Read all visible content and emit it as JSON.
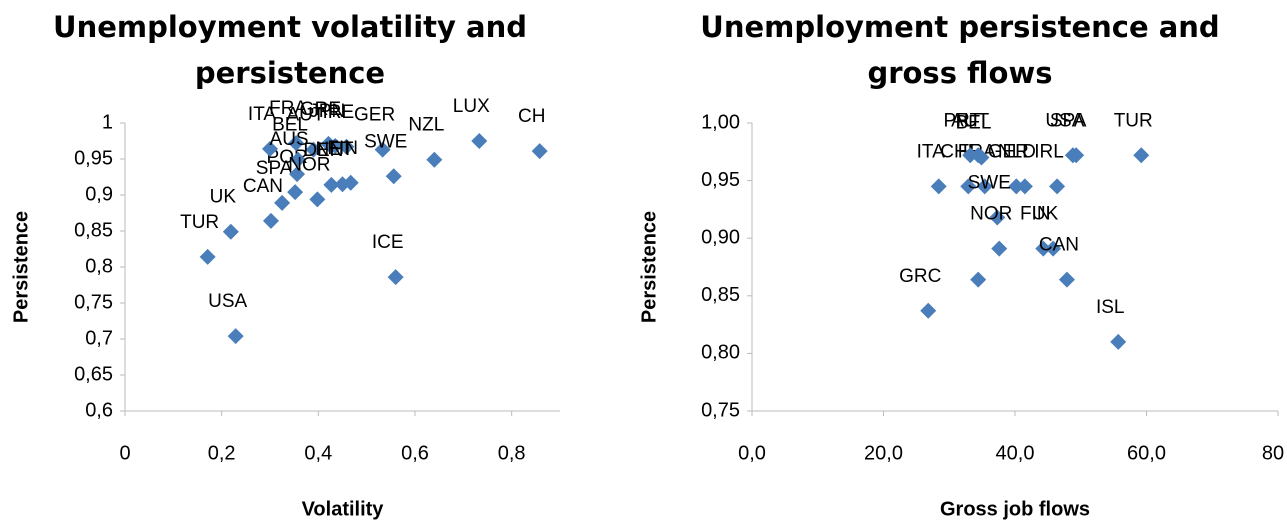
{
  "chart_data": [
    {
      "type": "scatter",
      "title": "Unemployment volatility and persistence",
      "x_label": "Volatility",
      "y_label": "Persistence",
      "color": "#4a7ebb",
      "labels": [
        "USA",
        "TUR",
        "UK",
        "CAN",
        "SPA",
        "POR",
        "ITA",
        "FRA",
        "BEL",
        "AUS",
        "AUT",
        "GRE",
        "JPN",
        "IRE",
        "NOR",
        "DEN",
        "NET",
        "FIN",
        "GER",
        "SWE",
        "NZL",
        "LUX",
        "CH",
        "ICE"
      ],
      "x": [
        0.229,
        0.171,
        0.219,
        0.302,
        0.325,
        0.352,
        0.3,
        0.354,
        0.358,
        0.356,
        0.39,
        0.421,
        0.435,
        0.458,
        0.398,
        0.427,
        0.45,
        0.467,
        0.533,
        0.556,
        0.64,
        0.733,
        0.858,
        0.56
      ],
      "y": [
        0.704,
        0.814,
        0.849,
        0.864,
        0.889,
        0.904,
        0.964,
        0.972,
        0.949,
        0.929,
        0.963,
        0.971,
        0.968,
        0.967,
        0.894,
        0.914,
        0.915,
        0.917,
        0.963,
        0.926,
        0.949,
        0.975,
        0.961,
        0.786
      ],
      "xlim": [
        0,
        0.9
      ],
      "ylim": [
        0.6,
        1.0
      ],
      "xticks": [
        0,
        {
          "value": 0.2,
          "label": "0,2"
        },
        {
          "value": 0.4,
          "label": "0,4"
        },
        {
          "value": 0.6,
          "label": "0,6"
        },
        {
          "value": 0.8,
          "label": "0,8"
        }
      ],
      "yticks": [
        {
          "value": 0.6,
          "label": "0,6"
        },
        {
          "value": 0.65,
          "label": "0,65"
        },
        {
          "value": 0.7,
          "label": "0,7"
        },
        {
          "value": 0.75,
          "label": "0,75"
        },
        {
          "value": 0.8,
          "label": "0,8"
        },
        {
          "value": 0.85,
          "label": "0,85"
        },
        {
          "value": 0.9,
          "label": "0,9"
        },
        {
          "value": 0.95,
          "label": "0,95"
        },
        1
      ]
    },
    {
      "type": "scatter",
      "title": "Unemployment  persistence and gross flows",
      "x_label": "Gross job flows",
      "y_label": "Persistence",
      "color": "#4a7ebb",
      "labels": [
        "ITA",
        "CHE",
        "FRA",
        "PRT",
        "AUT",
        "GER",
        "NLD",
        "IRL",
        "USA",
        "TUR",
        "SWE",
        "NOR",
        "FIN",
        "UK",
        "CAN",
        "GRC",
        "ISL",
        "BEL",
        "SPA",
        null
      ],
      "x": [
        28.4,
        32.9,
        35.4,
        33.2,
        34.4,
        40.2,
        41.5,
        46.4,
        48.8,
        59.2,
        37.3,
        37.6,
        44.3,
        45.8,
        47.9,
        26.8,
        55.7,
        34.9,
        49.3,
        34.4
      ],
      "y": [
        0.945,
        0.945,
        0.945,
        0.972,
        0.972,
        0.945,
        0.945,
        0.945,
        0.972,
        0.972,
        0.918,
        0.891,
        0.891,
        0.891,
        0.864,
        0.837,
        0.81,
        0.97,
        0.972,
        0.864
      ],
      "xlim": [
        0,
        80
      ],
      "ylim": [
        0.75,
        1.0
      ],
      "xticks": [
        {
          "value": 0,
          "label": "0,0"
        },
        {
          "value": 20,
          "label": "20,0"
        },
        {
          "value": 40,
          "label": "40,0"
        },
        {
          "value": 60,
          "label": "60,0"
        },
        80
      ],
      "yticks": [
        {
          "value": 0.75,
          "label": "0,75"
        },
        {
          "value": 0.8,
          "label": "0,80"
        },
        {
          "value": 0.85,
          "label": "0,85"
        },
        {
          "value": 0.9,
          "label": "0,90"
        },
        {
          "value": 0.95,
          "label": "0,95"
        },
        {
          "value": 1.0,
          "label": "1,00"
        }
      ]
    }
  ]
}
